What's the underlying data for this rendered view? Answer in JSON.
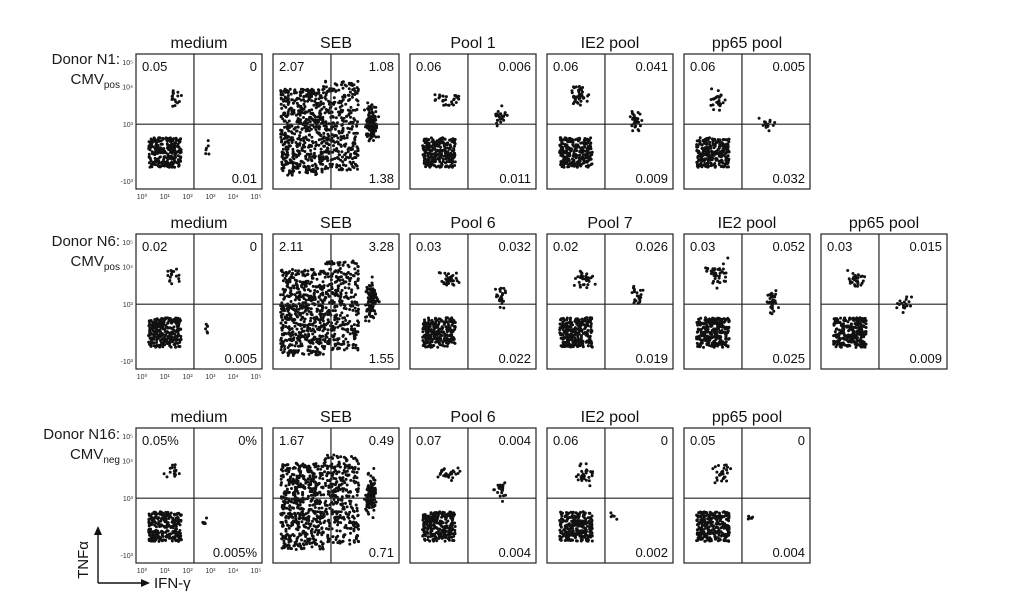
{
  "chart_data": {
    "type": "scatter",
    "xlabel": "IFN-γ",
    "ylabel": "TNFα",
    "x_ticks": [
      "10⁰",
      "10¹",
      "10²",
      "10³",
      "10⁴",
      "10⁵"
    ],
    "y_ticks": [
      "10⁵",
      "10⁴",
      "10³",
      "-10³"
    ],
    "colors": {
      "points": "#111111",
      "frame": "#222222"
    },
    "rows": [
      {
        "donor_label": "Donor N1:",
        "cmv": "CMV",
        "cmv_sub": "pos",
        "panels": [
          {
            "stimulus": "medium",
            "upper_left": "0.05",
            "upper_right": "0",
            "lower_right": "0.01",
            "pattern": "medium"
          },
          {
            "stimulus": "SEB",
            "upper_left": "2.07",
            "upper_right": "1.08",
            "lower_right": "1.38",
            "pattern": "seb"
          },
          {
            "stimulus": "Pool 1",
            "upper_left": "0.06",
            "upper_right": "0.006",
            "lower_right": "0.011",
            "pattern": "pool"
          },
          {
            "stimulus": "IE2 pool",
            "upper_left": "0.06",
            "upper_right": "0.041",
            "lower_right": "0.009",
            "pattern": "ie2"
          },
          {
            "stimulus": "pp65 pool",
            "upper_left": "0.06",
            "upper_right": "0.005",
            "lower_right": "0.032",
            "pattern": "pp65"
          }
        ]
      },
      {
        "donor_label": "Donor N6:",
        "cmv": "CMV",
        "cmv_sub": "pos",
        "panels": [
          {
            "stimulus": "medium",
            "upper_left": "0.02",
            "upper_right": "0",
            "lower_right": "0.005",
            "pattern": "medium"
          },
          {
            "stimulus": "SEB",
            "upper_left": "2.11",
            "upper_right": "3.28",
            "lower_right": "1.55",
            "pattern": "seb"
          },
          {
            "stimulus": "Pool 6",
            "upper_left": "0.03",
            "upper_right": "0.032",
            "lower_right": "0.022",
            "pattern": "pool"
          },
          {
            "stimulus": "Pool 7",
            "upper_left": "0.02",
            "upper_right": "0.026",
            "lower_right": "0.019",
            "pattern": "pool"
          },
          {
            "stimulus": "IE2 pool",
            "upper_left": "0.03",
            "upper_right": "0.052",
            "lower_right": "0.025",
            "pattern": "ie2"
          },
          {
            "stimulus": "pp65 pool",
            "upper_left": "0.03",
            "upper_right": "0.015",
            "lower_right": "0.009",
            "pattern": "pp65"
          }
        ]
      },
      {
        "donor_label": "Donor N16:",
        "cmv": "CMV",
        "cmv_sub": "neg",
        "panels": [
          {
            "stimulus": "medium",
            "upper_left": "0.05%",
            "upper_right": "0%",
            "lower_right": "0.005%",
            "pattern": "medium"
          },
          {
            "stimulus": "SEB",
            "upper_left": "1.67",
            "upper_right": "0.49",
            "lower_right": "0.71",
            "pattern": "seb"
          },
          {
            "stimulus": "Pool 6",
            "upper_left": "0.07",
            "upper_right": "0.004",
            "lower_right": "0.004",
            "pattern": "pool"
          },
          {
            "stimulus": "IE2 pool",
            "upper_left": "0.06",
            "upper_right": "0",
            "lower_right": "0.002",
            "pattern": "neg"
          },
          {
            "stimulus": "pp65 pool",
            "upper_left": "0.05",
            "upper_right": "0",
            "lower_right": "0.004",
            "pattern": "neg"
          }
        ]
      }
    ]
  }
}
